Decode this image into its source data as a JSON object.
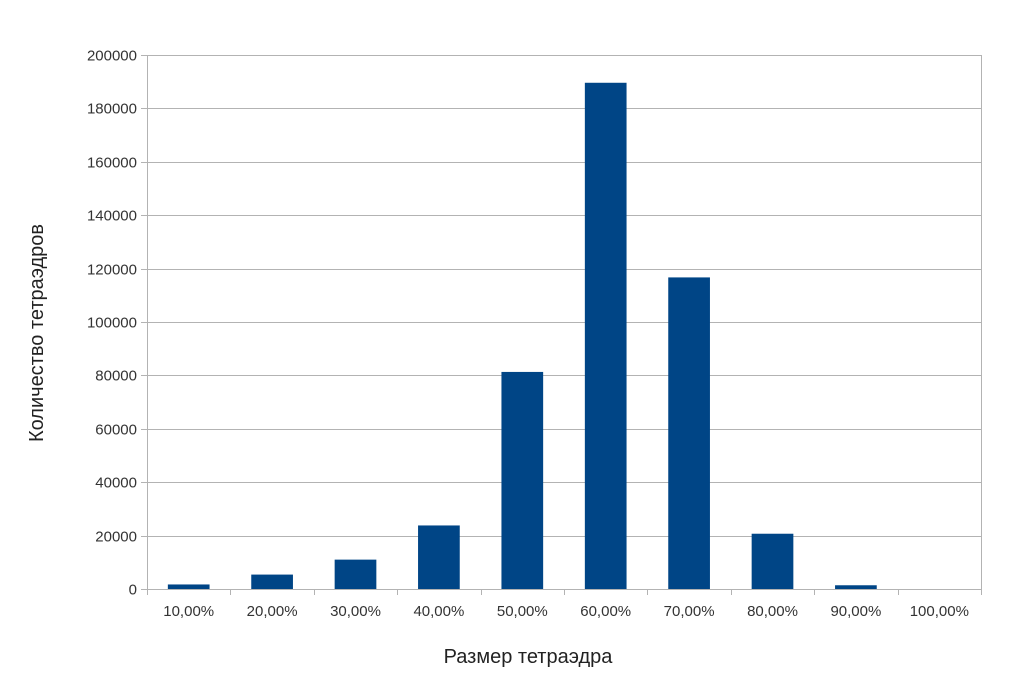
{
  "chart_data": {
    "type": "bar",
    "xlabel": "Размер тетраэдра",
    "ylabel": "Количество тетраэдров",
    "categories": [
      "10,00%",
      "20,00%",
      "30,00%",
      "40,00%",
      "50,00%",
      "60,00%",
      "70,00%",
      "80,00%",
      "90,00%",
      "100,00%"
    ],
    "values": [
      1700,
      5400,
      11000,
      23800,
      81300,
      189600,
      116700,
      20700,
      1400,
      0
    ],
    "ylim": [
      0,
      200000
    ],
    "yticks": [
      "0",
      "20000",
      "40000",
      "60000",
      "80000",
      "100000",
      "120000",
      "140000",
      "160000",
      "180000",
      "200000"
    ],
    "grid": true,
    "legend": "none",
    "colors": {
      "bar": "#004586",
      "grid": "#b3b3b3",
      "axis": "#b3b3b3"
    }
  }
}
